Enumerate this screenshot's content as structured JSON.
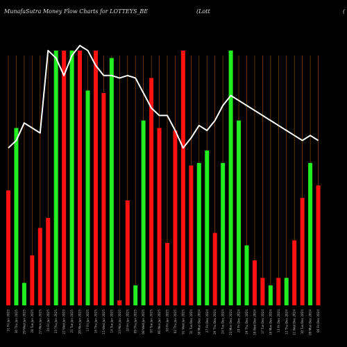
{
  "header": {
    "title": "MunafaSutra  Money Flow  Charts for LOTTEYS_BE",
    "extra": "(Lott",
    "tail": "("
  },
  "colors": {
    "background": "#000000",
    "up": "#22ee22",
    "down": "#ff1111",
    "line": "#ffffff",
    "grid": "#8a4a00"
  },
  "chart_data": {
    "type": "bar",
    "overlay": "line",
    "grid": true,
    "ylim": [
      0,
      100
    ],
    "categories": [
      "31 Fri Jan 2025",
      "30 Thu Jan 2025",
      "29 Wed Jan 2025",
      "28 Tue Jan 2025",
      "27 Mon Jan 2025",
      "24 Fri Jan 2025",
      "23 Thu Jan 2025",
      "22 Wed Jan 2025",
      "21 Tue Jan 2025",
      "20 Mon Jan 2025",
      "17 Fri Jan 2025",
      "16 Thu Jan 2025",
      "15 Wed Jan 2025",
      "14 Tue Jan 2025",
      "13 Mon Jan 2025",
      "10 Fri Jan 2025",
      "09 Thu Jan 2025",
      "08 Wed Jan 2025",
      "07 Tue Jan 2025",
      "06 Mon Jan 2025",
      "03 Fri Jan 2025",
      "02 Thu Jan 2025",
      "01 Wed Jan 2025",
      "31 Tue Dec 2024",
      "30 Mon Dec 2024",
      "27 Fri Dec 2024",
      "26 Thu Dec 2024",
      "24 Tue Dec 2024",
      "23 Mon Dec 2024",
      "20 Fri Dec 2024",
      "19 Thu Dec 2024",
      "18 Wed Dec 2024",
      "17 Tue Dec 2024",
      "16 Mon Dec 2024",
      "13 Fri Dec 2024",
      "12 Thu Dec 2024",
      "11 Wed Dec 2024",
      "10 Tue Dec 2024",
      "09 Mon Dec 2024",
      "06 Fri Dec 2024"
    ],
    "colors": [
      "down",
      "up",
      "up",
      "down",
      "down",
      "down",
      "up",
      "down",
      "up",
      "down",
      "up",
      "down",
      "down",
      "up",
      "down",
      "down",
      "up",
      "up",
      "down",
      "down",
      "down",
      "down",
      "down",
      "down",
      "up",
      "up",
      "down",
      "up",
      "up",
      "up",
      "up",
      "down",
      "down",
      "up",
      "down",
      "up",
      "down",
      "down",
      "up",
      "down"
    ],
    "values": [
      46,
      71,
      9,
      20,
      31,
      35,
      102,
      102,
      102,
      102,
      86,
      102,
      85,
      99,
      2,
      42,
      8,
      74,
      91,
      71,
      25,
      70,
      102,
      56,
      57,
      62,
      29,
      57,
      102,
      74,
      24,
      18,
      11,
      8,
      11,
      11,
      26,
      43,
      57,
      48
    ],
    "line": [
      63,
      66,
      73,
      71,
      69,
      102,
      99,
      92,
      100,
      104,
      102,
      96,
      92,
      92,
      91,
      92,
      91,
      85,
      79,
      76,
      76,
      70,
      63,
      67,
      72,
      70,
      74,
      80,
      84,
      82,
      80,
      78,
      76,
      74,
      72,
      70,
      68,
      66,
      68,
      66
    ]
  }
}
